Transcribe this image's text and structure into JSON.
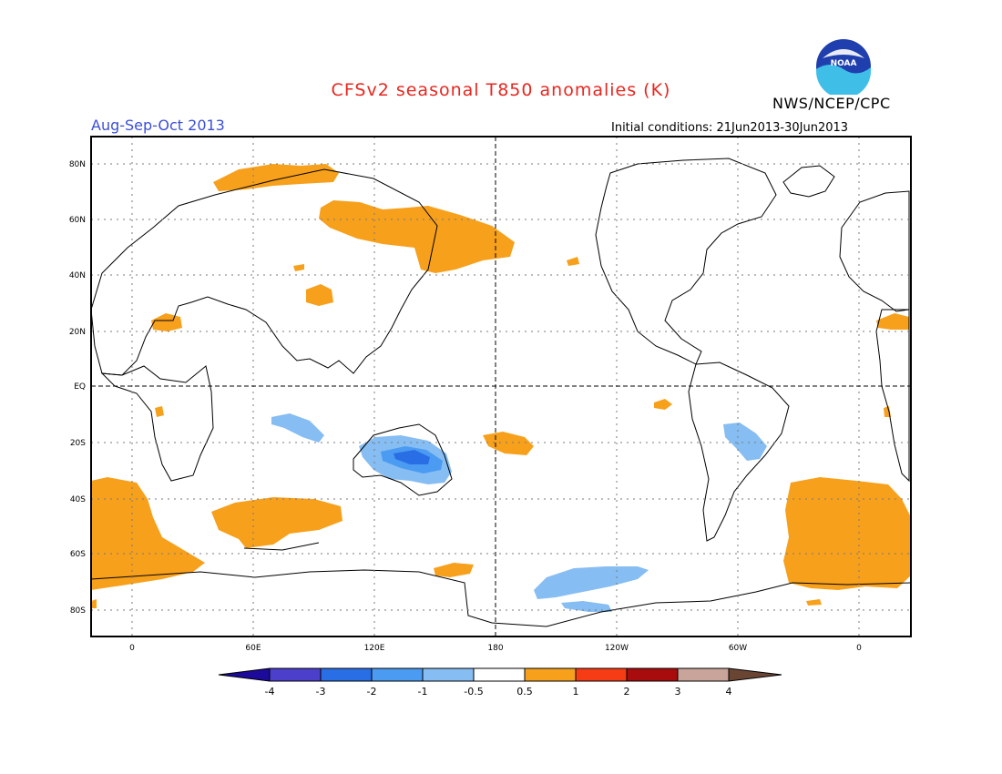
{
  "header": {
    "title": "CFSv2 seasonal T850 anomalies (K)",
    "agency": "NWS/NCEP/CPC",
    "period": "Aug-Sep-Oct 2013",
    "initial_conditions": "Initial conditions: 21Jun2013-30Jun2013",
    "logo_text": "NOAA"
  },
  "map": {
    "lat_labels": [
      "80N",
      "60N",
      "40N",
      "20N",
      "EQ",
      "20S",
      "40S",
      "60S",
      "80S"
    ],
    "lon_labels": [
      "0",
      "60E",
      "120E",
      "180",
      "120W",
      "60W",
      "0"
    ]
  },
  "legend": {
    "labels": [
      "-4",
      "-3",
      "-2",
      "-1",
      "-0.5",
      "0.5",
      "1",
      "2",
      "3",
      "4"
    ],
    "colors": [
      "#1c0a9a",
      "#4b3fcc",
      "#2a6ee6",
      "#4b9bf2",
      "#86bdf2",
      "#ffffff",
      "#f7a01c",
      "#f53c14",
      "#a80c0c",
      "#c8a49a",
      "#6a4534"
    ]
  },
  "colors": {
    "warm": "#f7a01c",
    "cool_light": "#86bdf2",
    "cool_mid": "#4b9bf2",
    "cool_dark": "#2a6ee6"
  }
}
